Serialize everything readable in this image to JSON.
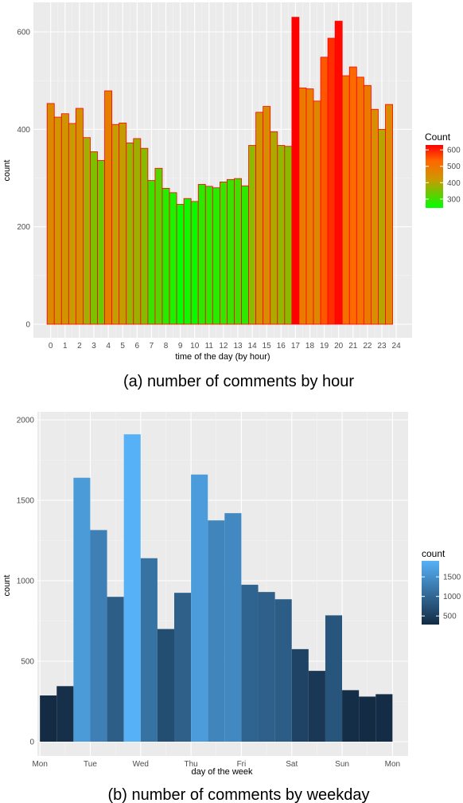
{
  "colors": {
    "panel_bg": "#ebebeb",
    "grid_major": "#ffffff",
    "bar_outline_a": "#ff0000",
    "grad_a_low": "#00ff00",
    "grad_a_mid": "#ff9900",
    "grad_a_high": "#ff0000",
    "grad_b_low": "#132b43",
    "grad_b_high": "#56b1f7"
  },
  "chart_data": [
    {
      "type": "bar",
      "caption": "(a) number of comments by hour",
      "xlabel": "time of the day (by hour)",
      "ylabel": "count",
      "ylim": [
        0,
        650
      ],
      "y_ticks": [
        "0",
        "200",
        "400",
        "600"
      ],
      "x_ticks": [
        "0",
        "1",
        "2",
        "3",
        "4",
        "5",
        "6",
        "7",
        "8",
        "9",
        "10",
        "11",
        "12",
        "13",
        "14",
        "15",
        "16",
        "17",
        "18",
        "19",
        "20",
        "21",
        "22",
        "23",
        "24"
      ],
      "bin_width": 0.5,
      "values": [
        453,
        425,
        432,
        412,
        443,
        383,
        354,
        336,
        479,
        410,
        413,
        372,
        381,
        361,
        295,
        320,
        279,
        270,
        246,
        258,
        252,
        287,
        283,
        280,
        292,
        297,
        299,
        284,
        367,
        435,
        447,
        395,
        367,
        365,
        630,
        485,
        483,
        458,
        548,
        587,
        622,
        510,
        528,
        507,
        490,
        441,
        400,
        451
      ],
      "legend": {
        "title": "Count",
        "labels": [
          "600",
          "500",
          "400",
          "300"
        ],
        "label_values": [
          600,
          500,
          400,
          300
        ],
        "min": 246,
        "max": 630
      }
    },
    {
      "type": "bar",
      "caption": "(b) number of comments by weekday",
      "xlabel": "day of the week",
      "ylabel": "count",
      "ylim": [
        0,
        2000
      ],
      "y_ticks": [
        "0",
        "500",
        "1000",
        "1500",
        "2000"
      ],
      "x_ticks": [
        "Mon",
        "Tue",
        "Wed",
        "Thu",
        "Fri",
        "Sat",
        "Sun",
        "Mon"
      ],
      "bin_width": 0.333,
      "values": [
        287,
        345,
        1640,
        1315,
        900,
        1910,
        1140,
        700,
        925,
        1660,
        1375,
        1420,
        975,
        930,
        885,
        575,
        440,
        785,
        320,
        280,
        295
      ],
      "legend": {
        "title": "count",
        "labels": [
          "1500",
          "1000",
          "500"
        ],
        "label_values": [
          1500,
          1000,
          500
        ],
        "min": 280,
        "max": 1910
      }
    }
  ]
}
